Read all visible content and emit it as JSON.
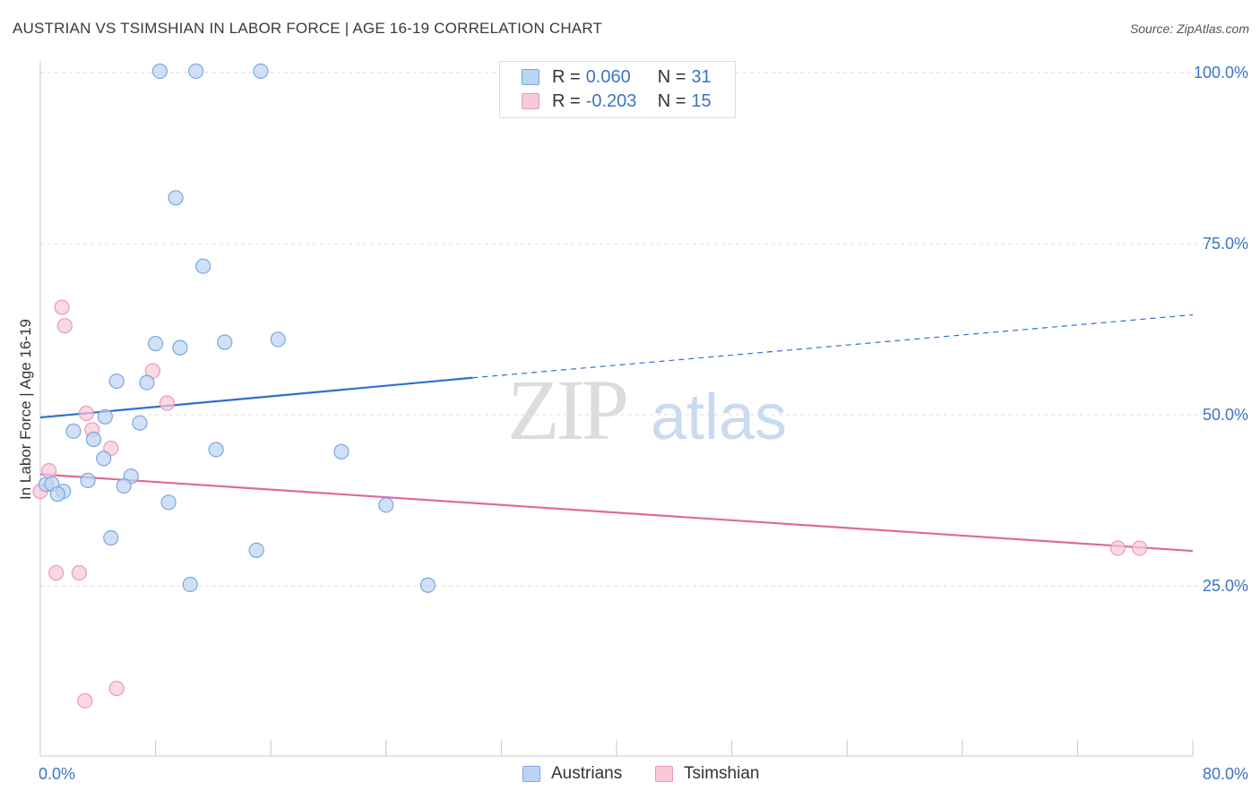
{
  "header": {
    "title": "AUSTRIAN VS TSIMSHIAN IN LABOR FORCE | AGE 16-19 CORRELATION CHART",
    "source": "Source: ZipAtlas.com"
  },
  "stats_legend": {
    "rows": [
      {
        "r_label": "R = ",
        "r_value": "0.060",
        "n_label": "N = ",
        "n_value": "31"
      },
      {
        "r_label": "R = ",
        "r_value": "-0.203",
        "n_label": "N = ",
        "n_value": "15"
      }
    ]
  },
  "colors": {
    "austrians_fill": "#bcd4f4",
    "austrians_stroke": "#7aa6e0",
    "austrians_line": "#2f6fcf",
    "tsimshian_fill": "#f8c8d8",
    "tsimshian_stroke": "#eb9ab5",
    "tsimshian_line": "#e06a96",
    "axis_label": "#3a74c4",
    "grid": "#dddddd"
  },
  "watermark": {
    "zip": "ZIP",
    "atlas": "atlas"
  },
  "chart_data": {
    "type": "scatter",
    "title": "AUSTRIAN VS TSIMSHIAN IN LABOR FORCE | AGE 16-19 CORRELATION CHART",
    "xlabel": "",
    "ylabel": "In Labor Force | Age 16-19",
    "xlim": [
      0,
      80
    ],
    "ylim": [
      0,
      102
    ],
    "x_tick_labels": [
      {
        "value": 0,
        "label": "0.0%"
      },
      {
        "value": 80,
        "label": "80.0%"
      }
    ],
    "y_tick_labels": [
      {
        "value": 25,
        "label": "25.0%"
      },
      {
        "value": 50,
        "label": "50.0%"
      },
      {
        "value": 75,
        "label": "75.0%"
      },
      {
        "value": 100,
        "label": "100.0%"
      }
    ],
    "grid": true,
    "legend_position": "bottom",
    "series": [
      {
        "name": "Austrians",
        "points": [
          [
            8.3,
            100.2
          ],
          [
            10.8,
            100.2
          ],
          [
            15.3,
            100.2
          ],
          [
            9.4,
            81.7
          ],
          [
            11.3,
            71.7
          ],
          [
            8.0,
            60.4
          ],
          [
            9.7,
            59.8
          ],
          [
            12.8,
            60.6
          ],
          [
            16.5,
            61.0
          ],
          [
            5.3,
            54.9
          ],
          [
            7.4,
            54.7
          ],
          [
            4.5,
            49.7
          ],
          [
            6.9,
            48.8
          ],
          [
            2.3,
            47.6
          ],
          [
            3.7,
            46.4
          ],
          [
            12.2,
            44.9
          ],
          [
            20.9,
            44.6
          ],
          [
            4.4,
            43.6
          ],
          [
            6.3,
            41.0
          ],
          [
            3.3,
            40.4
          ],
          [
            5.8,
            39.6
          ],
          [
            0.4,
            39.8
          ],
          [
            0.8,
            39.9
          ],
          [
            1.6,
            38.8
          ],
          [
            1.2,
            38.4
          ],
          [
            8.9,
            37.2
          ],
          [
            24.0,
            36.8
          ],
          [
            4.9,
            32.0
          ],
          [
            15.0,
            30.2
          ],
          [
            10.4,
            25.2
          ],
          [
            26.9,
            25.1
          ]
        ],
        "trend": {
          "x": [
            0,
            30
          ],
          "y": [
            49.6,
            55.4
          ],
          "extended_x": [
            30,
            80
          ],
          "extended_y": [
            55.4,
            64.6
          ]
        }
      },
      {
        "name": "Tsimshian",
        "points": [
          [
            1.5,
            65.7
          ],
          [
            1.7,
            63.0
          ],
          [
            7.8,
            56.4
          ],
          [
            8.8,
            51.7
          ],
          [
            3.2,
            50.2
          ],
          [
            3.6,
            47.8
          ],
          [
            4.9,
            45.1
          ],
          [
            0.6,
            41.8
          ],
          [
            0.0,
            38.8
          ],
          [
            1.1,
            26.9
          ],
          [
            2.7,
            26.9
          ],
          [
            74.8,
            30.5
          ],
          [
            76.3,
            30.5
          ],
          [
            5.3,
            10.0
          ],
          [
            3.1,
            8.2
          ]
        ],
        "trend": {
          "x": [
            0,
            80
          ],
          "y": [
            41.3,
            30.1
          ]
        }
      }
    ]
  }
}
